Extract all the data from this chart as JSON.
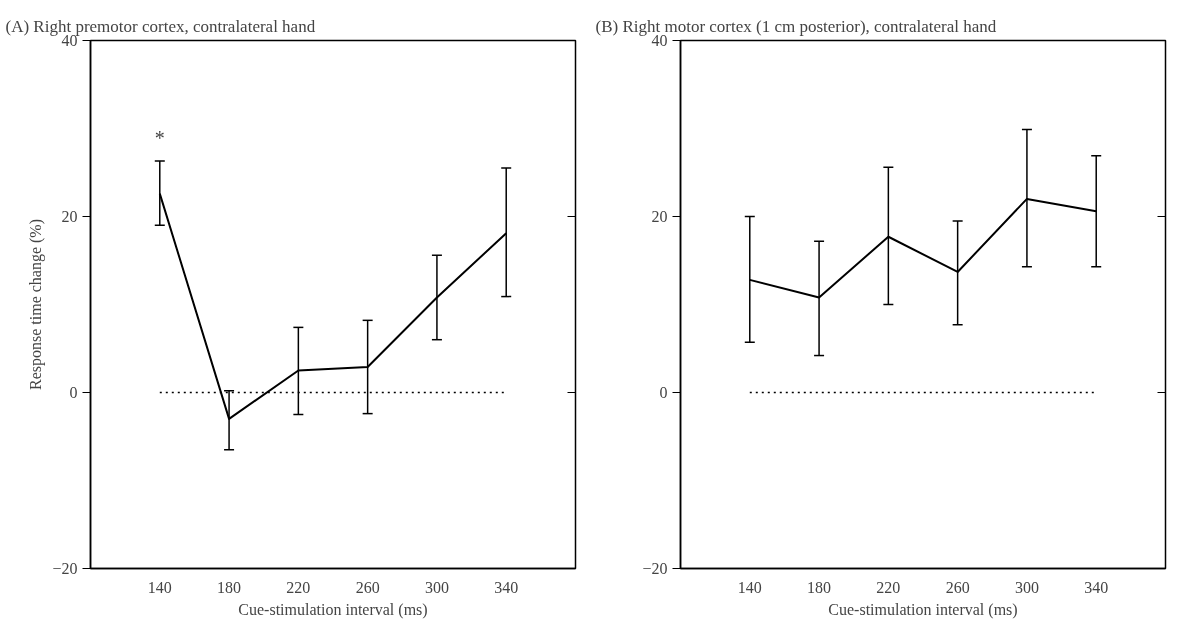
{
  "chart_data": [
    {
      "type": "line",
      "title": "(A)  Right premotor cortex, contralateral hand",
      "xlabel": "Cue-stimulation interval (ms)",
      "ylabel": "Response time change (%)",
      "xlim": [
        100,
        380
      ],
      "ylim": [
        -20,
        40
      ],
      "xticks": [
        140,
        180,
        220,
        260,
        300,
        340
      ],
      "yticks": [
        -20,
        0,
        20,
        40
      ],
      "annotations": [
        "*"
      ],
      "series": [
        {
          "color": "#000000",
          "x": [
            140,
            180,
            220,
            260,
            300,
            340
          ],
          "values": [
            22.6,
            -3.0,
            2.5,
            2.9,
            10.8,
            18.1
          ],
          "errors": [
            [
              19.0,
              26.3
            ],
            [
              -6.5,
              0.2
            ],
            [
              -2.5,
              7.4
            ],
            [
              -2.4,
              8.2
            ],
            [
              6.0,
              15.6
            ],
            [
              10.9,
              25.5
            ]
          ]
        },
        {
          "color": "#000000",
          "x": [
            140,
            340
          ],
          "values": [
            0,
            0
          ],
          "line_style": "dotted"
        }
      ]
    },
    {
      "type": "line",
      "title": "(B)  Right motor cortex (1 cm posterior), contralateral hand",
      "xlabel": "Cue-stimulation interval (ms)",
      "xlim": [
        100,
        380
      ],
      "ylim": [
        -20,
        40
      ],
      "xticks": [
        140,
        180,
        220,
        260,
        300,
        340
      ],
      "yticks": [
        -20,
        0,
        20,
        40
      ],
      "series": [
        {
          "color": "#000000",
          "x": [
            140,
            180,
            220,
            260,
            300,
            340
          ],
          "values": [
            12.8,
            10.8,
            17.7,
            13.7,
            22.0,
            20.6
          ],
          "errors": [
            [
              5.7,
              20.0
            ],
            [
              4.2,
              17.2
            ],
            [
              10.0,
              25.6
            ],
            [
              7.7,
              19.5
            ],
            [
              14.3,
              29.9
            ],
            [
              14.3,
              26.9
            ]
          ]
        },
        {
          "color": "#000000",
          "x": [
            140,
            340
          ],
          "values": [
            0,
            0
          ],
          "line_style": "dotted"
        }
      ]
    }
  ]
}
